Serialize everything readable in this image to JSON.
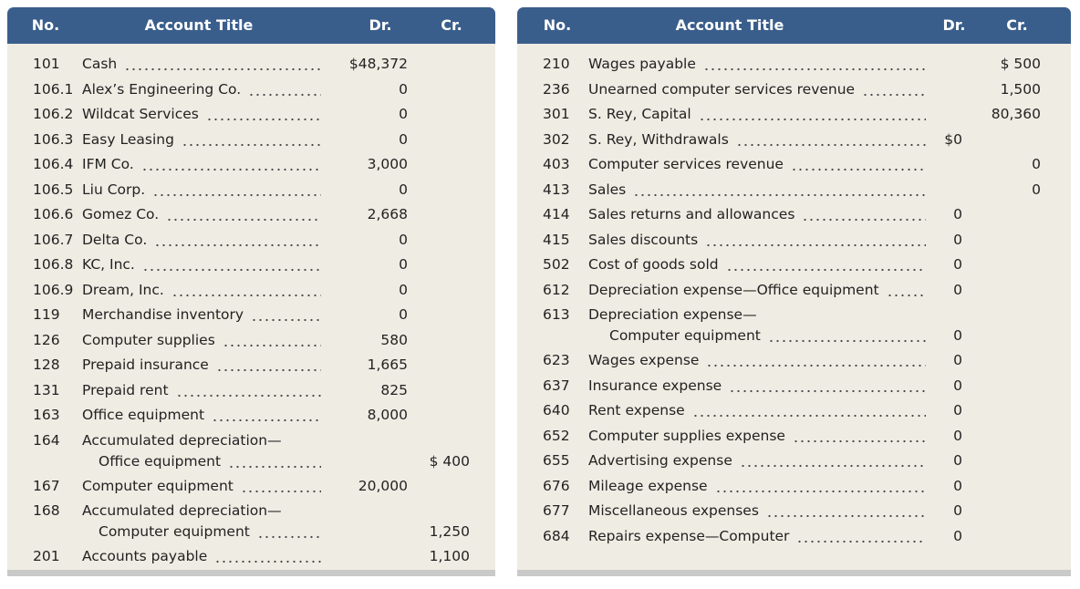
{
  "panels": [
    {
      "header": {
        "no": "No.",
        "title": "Account Title",
        "dr": "Dr.",
        "cr": "Cr."
      },
      "rows": [
        {
          "no": "101",
          "title": [
            "Cash"
          ],
          "dr": "$48,372"
        },
        {
          "no": "106.1",
          "title": [
            "Alex’s Engineering Co."
          ],
          "dr": "0"
        },
        {
          "no": "106.2",
          "title": [
            "Wildcat Services"
          ],
          "dr": "0"
        },
        {
          "no": "106.3",
          "title": [
            "Easy Leasing"
          ],
          "dr": "0"
        },
        {
          "no": "106.4",
          "title": [
            "IFM Co."
          ],
          "dr": "3,000"
        },
        {
          "no": "106.5",
          "title": [
            "Liu Corp."
          ],
          "dr": "0"
        },
        {
          "no": "106.6",
          "title": [
            "Gomez Co."
          ],
          "dr": "2,668"
        },
        {
          "no": "106.7",
          "title": [
            "Delta Co."
          ],
          "dr": "0"
        },
        {
          "no": "106.8",
          "title": [
            "KC, Inc."
          ],
          "dr": "0"
        },
        {
          "no": "106.9",
          "title": [
            "Dream, Inc."
          ],
          "dr": "0"
        },
        {
          "no": "119",
          "title": [
            "Merchandise inventory"
          ],
          "dr": "0"
        },
        {
          "no": "126",
          "title": [
            "Computer supplies"
          ],
          "dr": "580"
        },
        {
          "no": "128",
          "title": [
            "Prepaid insurance"
          ],
          "dr": "1,665"
        },
        {
          "no": "131",
          "title": [
            "Prepaid rent"
          ],
          "dr": "825"
        },
        {
          "no": "163",
          "title": [
            "Office equipment"
          ],
          "dr": "8,000"
        },
        {
          "no": "164",
          "title": [
            "Accumulated depreciation—",
            "Office equipment"
          ],
          "cr": "$ 400"
        },
        {
          "no": "167",
          "title": [
            "Computer equipment"
          ],
          "dr": "20,000"
        },
        {
          "no": "168",
          "title": [
            "Accumulated depreciation—",
            "Computer equipment"
          ],
          "cr": "1,250"
        },
        {
          "no": "201",
          "title": [
            "Accounts payable"
          ],
          "cr": "1,100"
        }
      ]
    },
    {
      "header": {
        "no": "No.",
        "title": "Account Title",
        "dr": "Dr.",
        "cr": "Cr."
      },
      "rows": [
        {
          "no": "210",
          "title": [
            "Wages payable"
          ],
          "cr": "$ 500"
        },
        {
          "no": "236",
          "title": [
            "Unearned computer services revenue"
          ],
          "cr": "1,500"
        },
        {
          "no": "301",
          "title": [
            "S. Rey, Capital"
          ],
          "cr": "80,360"
        },
        {
          "no": "302",
          "title": [
            "S. Rey, Withdrawals"
          ],
          "dr": "$0"
        },
        {
          "no": "403",
          "title": [
            "Computer services revenue"
          ],
          "cr": "0"
        },
        {
          "no": "413",
          "title": [
            "Sales"
          ],
          "cr": "0"
        },
        {
          "no": "414",
          "title": [
            "Sales returns and allowances"
          ],
          "dr": "0"
        },
        {
          "no": "415",
          "title": [
            "Sales discounts"
          ],
          "dr": "0"
        },
        {
          "no": "502",
          "title": [
            "Cost of goods sold"
          ],
          "dr": "0"
        },
        {
          "no": "612",
          "title": [
            "Depreciation expense—Office equipment"
          ],
          "dr": "0"
        },
        {
          "no": "613",
          "title": [
            "Depreciation expense—",
            "Computer equipment"
          ],
          "dr": "0"
        },
        {
          "no": "623",
          "title": [
            "Wages expense"
          ],
          "dr": "0"
        },
        {
          "no": "637",
          "title": [
            "Insurance expense"
          ],
          "dr": "0"
        },
        {
          "no": "640",
          "title": [
            "Rent expense"
          ],
          "dr": "0"
        },
        {
          "no": "652",
          "title": [
            "Computer supplies expense"
          ],
          "dr": "0"
        },
        {
          "no": "655",
          "title": [
            "Advertising expense"
          ],
          "dr": "0"
        },
        {
          "no": "676",
          "title": [
            "Mileage expense"
          ],
          "dr": "0"
        },
        {
          "no": "677",
          "title": [
            "Miscellaneous expenses"
          ],
          "dr": "0"
        },
        {
          "no": "684",
          "title": [
            "Repairs expense—Computer"
          ],
          "dr": "0"
        }
      ]
    }
  ]
}
